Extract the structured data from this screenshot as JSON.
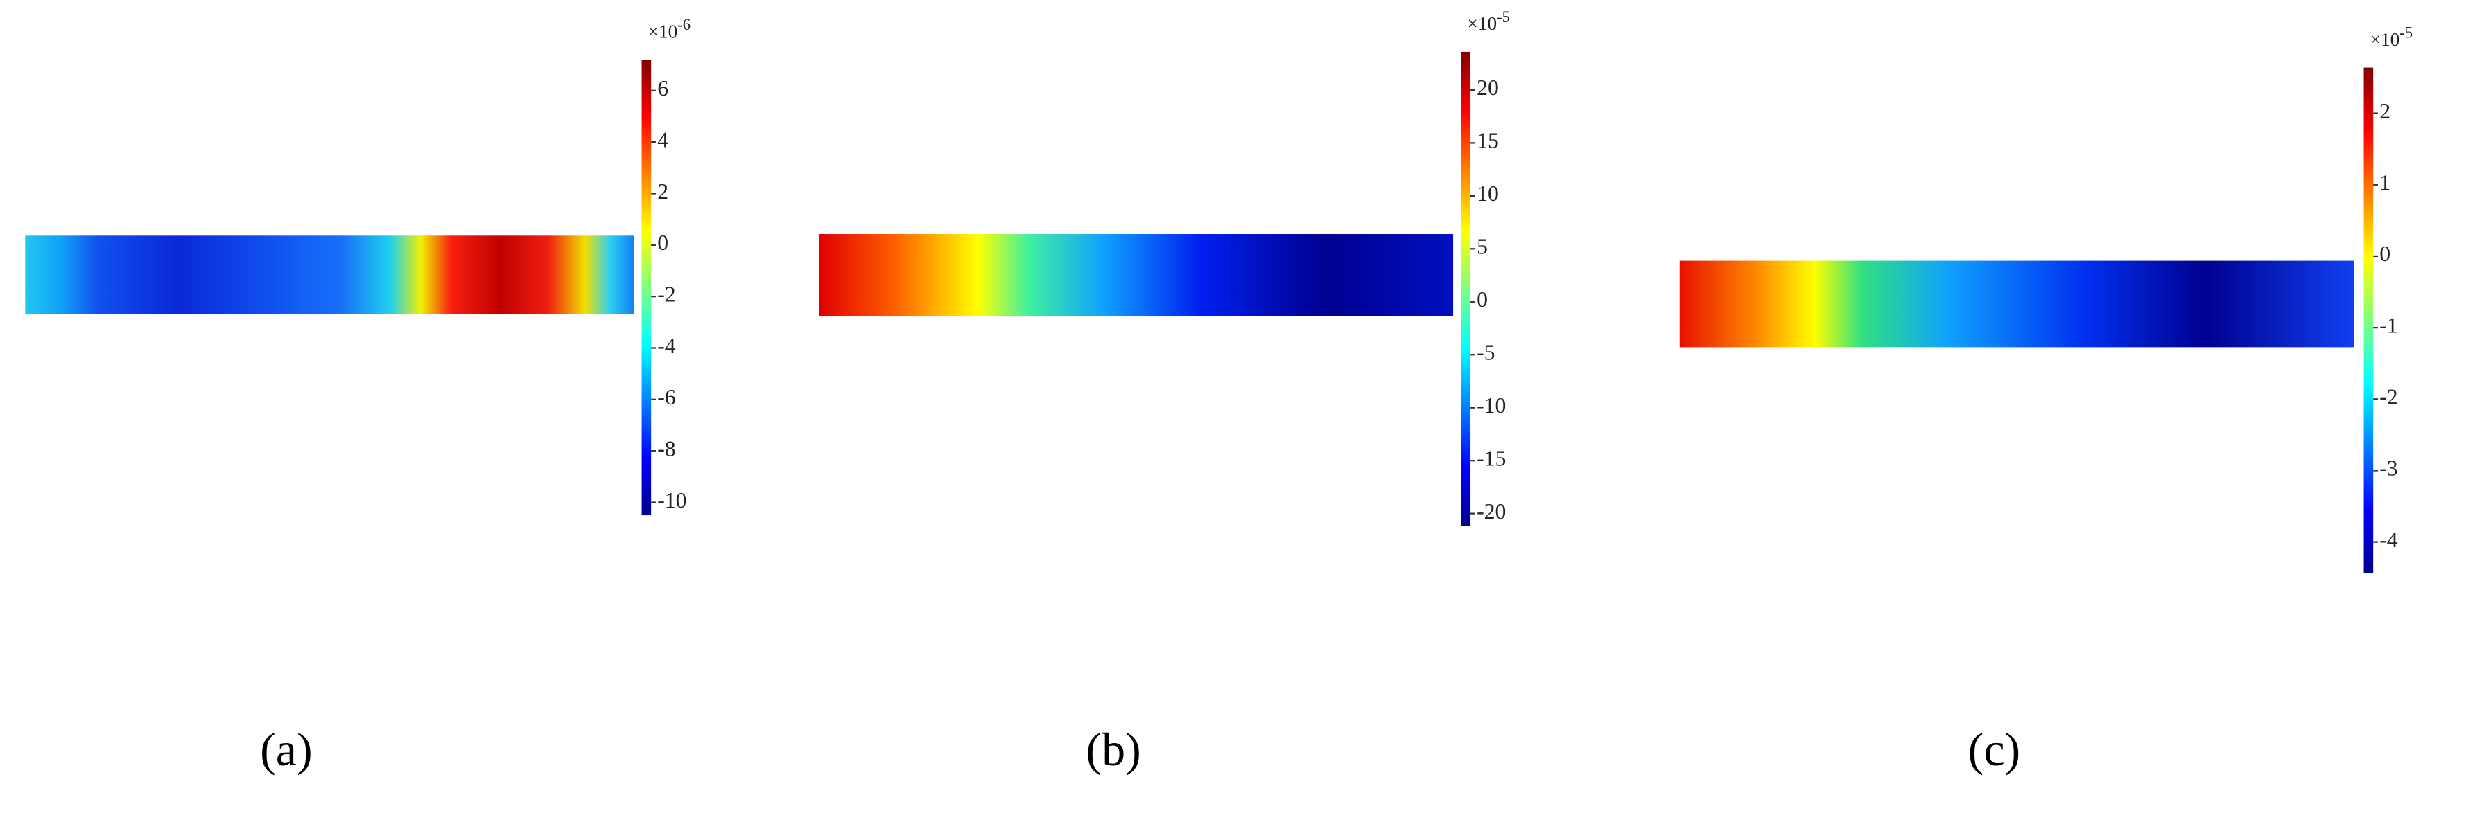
{
  "chart_data": [
    {
      "type": "heatmap",
      "label": "(a)",
      "colormap": "jet",
      "scale_label": "×10",
      "scale_exponent": "-6",
      "clim": [
        -10.5,
        7.2
      ],
      "cticks": [
        -10,
        -8,
        -6,
        -4,
        -2,
        0,
        2,
        4,
        6
      ]
    },
    {
      "type": "heatmap",
      "label": "(b)",
      "colormap": "jet",
      "scale_label": "×10",
      "scale_exponent": "-5",
      "clim": [
        -21.2,
        23.6
      ],
      "cticks": [
        -20,
        -15,
        -10,
        -5,
        0,
        5,
        10,
        15,
        20
      ]
    },
    {
      "type": "heatmap",
      "label": "(c)",
      "colormap": "jet",
      "scale_label": "×10",
      "scale_exponent": "-5",
      "clim": [
        -4.44,
        2.64
      ],
      "cticks": [
        -4,
        -3,
        -2,
        -1,
        0,
        1,
        2
      ]
    }
  ]
}
